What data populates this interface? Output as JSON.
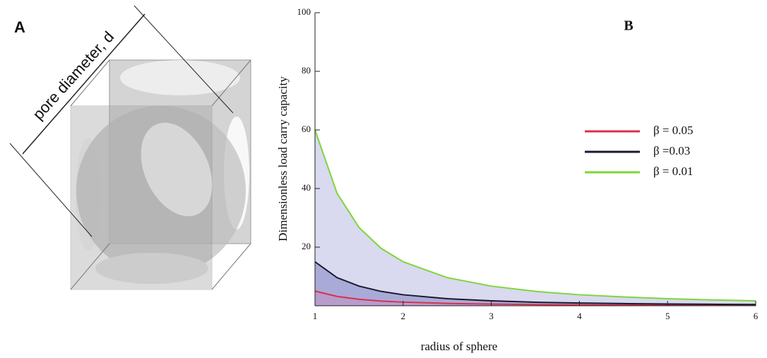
{
  "illustration": {
    "label": "A",
    "dimension_label": "pore diameter, d"
  },
  "chart_data": {
    "type": "area",
    "title": "B",
    "x_label": "radius of sphere",
    "y_label": "Dimensionless load  carry capacity",
    "x": [
      1,
      1.25,
      1.5,
      1.75,
      2,
      2.5,
      3,
      3.5,
      4,
      4.5,
      5,
      5.5,
      6
    ],
    "series": [
      {
        "name": "β = 0.05",
        "color": "#d9304a",
        "fill": "#b79ccc",
        "values": [
          5,
          3.2,
          2.2,
          1.6,
          1.25,
          0.8,
          0.56,
          0.41,
          0.31,
          0.25,
          0.2,
          0.17,
          0.14
        ]
      },
      {
        "name": "β =0.03",
        "color": "#1a1a2e",
        "fill": "#aaaad8",
        "values": [
          15,
          9.6,
          6.7,
          4.9,
          3.75,
          2.4,
          1.7,
          1.2,
          0.94,
          0.74,
          0.6,
          0.5,
          0.42
        ]
      },
      {
        "name": "β = 0.01",
        "color": "#7ed63a",
        "fill": "#d9d9f0",
        "values": [
          60,
          38.4,
          26.7,
          19.6,
          15,
          9.6,
          6.7,
          4.9,
          3.75,
          3.0,
          2.4,
          2.0,
          1.7
        ]
      }
    ],
    "xlim": [
      1,
      6
    ],
    "xticks": [
      1,
      2,
      3,
      4,
      5,
      6
    ],
    "ylim": [
      0,
      100
    ],
    "yticks": [
      20,
      40,
      60,
      80,
      100
    ]
  }
}
